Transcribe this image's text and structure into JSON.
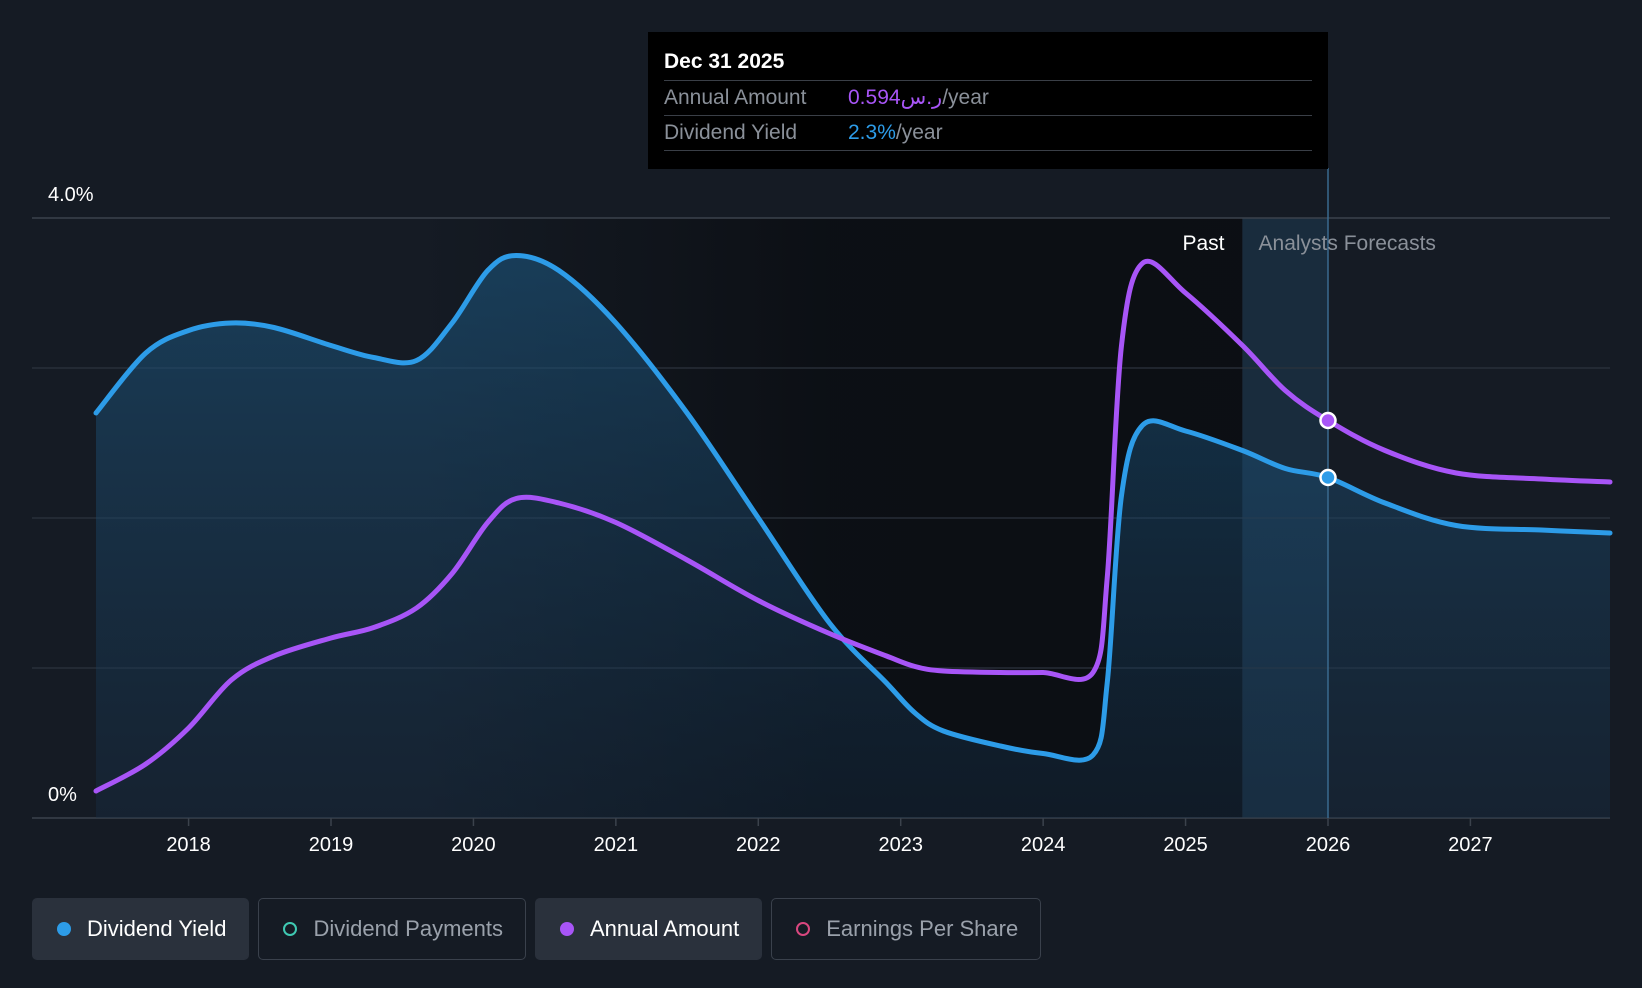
{
  "chart_data": {
    "type": "line",
    "y_axis": {
      "min": 0,
      "max": 4.0,
      "labels": [
        "4.0%",
        "0%"
      ],
      "gridlines": [
        1.0,
        2.0,
        3.0
      ]
    },
    "x_axis": {
      "min": 2017.35,
      "max": 2027.98,
      "ticks": [
        "2018",
        "2019",
        "2020",
        "2021",
        "2022",
        "2023",
        "2024",
        "2025",
        "2026",
        "2027"
      ]
    },
    "regions": {
      "past_label": "Past",
      "forecast_label": "Analysts Forecasts",
      "forecast_start": 2025.4,
      "forecast_end": 2026.0
    },
    "series": [
      {
        "name": "Dividend Yield",
        "color": "#2d9ce8",
        "area": true,
        "points": [
          [
            2017.35,
            2.7
          ],
          [
            2017.7,
            3.1
          ],
          [
            2018.0,
            3.25
          ],
          [
            2018.3,
            3.3
          ],
          [
            2018.6,
            3.27
          ],
          [
            2019.0,
            3.15
          ],
          [
            2019.3,
            3.07
          ],
          [
            2019.6,
            3.05
          ],
          [
            2019.85,
            3.3
          ],
          [
            2020.1,
            3.65
          ],
          [
            2020.3,
            3.75
          ],
          [
            2020.6,
            3.65
          ],
          [
            2021.0,
            3.3
          ],
          [
            2021.5,
            2.7
          ],
          [
            2022.0,
            2.0
          ],
          [
            2022.5,
            1.3
          ],
          [
            2022.9,
            0.9
          ],
          [
            2023.1,
            0.7
          ],
          [
            2023.3,
            0.58
          ],
          [
            2023.7,
            0.48
          ],
          [
            2024.0,
            0.43
          ],
          [
            2024.35,
            0.42
          ],
          [
            2024.45,
            0.9
          ],
          [
            2024.55,
            2.15
          ],
          [
            2024.7,
            2.62
          ],
          [
            2025.0,
            2.58
          ],
          [
            2025.4,
            2.45
          ],
          [
            2025.7,
            2.33
          ],
          [
            2026.0,
            2.27
          ],
          [
            2026.4,
            2.1
          ],
          [
            2026.9,
            1.95
          ],
          [
            2027.5,
            1.92
          ],
          [
            2027.98,
            1.9
          ]
        ]
      },
      {
        "name": "Annual Amount",
        "color": "#a855f7",
        "area": false,
        "points": [
          [
            2017.35,
            0.18
          ],
          [
            2017.7,
            0.36
          ],
          [
            2018.0,
            0.6
          ],
          [
            2018.3,
            0.92
          ],
          [
            2018.6,
            1.08
          ],
          [
            2019.0,
            1.2
          ],
          [
            2019.3,
            1.27
          ],
          [
            2019.6,
            1.4
          ],
          [
            2019.85,
            1.63
          ],
          [
            2020.1,
            1.97
          ],
          [
            2020.3,
            2.13
          ],
          [
            2020.6,
            2.1
          ],
          [
            2021.0,
            1.97
          ],
          [
            2021.5,
            1.72
          ],
          [
            2022.0,
            1.45
          ],
          [
            2022.5,
            1.23
          ],
          [
            2022.9,
            1.08
          ],
          [
            2023.1,
            1.01
          ],
          [
            2023.3,
            0.98
          ],
          [
            2023.7,
            0.97
          ],
          [
            2024.0,
            0.97
          ],
          [
            2024.35,
            0.97
          ],
          [
            2024.45,
            1.6
          ],
          [
            2024.55,
            3.15
          ],
          [
            2024.7,
            3.7
          ],
          [
            2025.0,
            3.5
          ],
          [
            2025.4,
            3.15
          ],
          [
            2025.7,
            2.85
          ],
          [
            2026.0,
            2.65
          ],
          [
            2026.4,
            2.45
          ],
          [
            2026.9,
            2.3
          ],
          [
            2027.5,
            2.26
          ],
          [
            2027.98,
            2.24
          ]
        ]
      }
    ],
    "highlight": {
      "x": 2026.0,
      "yield_y": 2.27,
      "amount_y": 2.65
    }
  },
  "tooltip": {
    "date": "Dec 31 2025",
    "rows": [
      {
        "label": "Annual Amount",
        "value": "0.594ر.س",
        "suffix": "/year"
      },
      {
        "label": "Dividend Yield",
        "value": "2.3%",
        "suffix": "/year"
      }
    ]
  },
  "legend": {
    "items": [
      {
        "label": "Dividend Yield",
        "color": "#2d9ce8",
        "active": true
      },
      {
        "label": "Dividend Payments",
        "color": "#3fc9b2",
        "active": false
      },
      {
        "label": "Annual Amount",
        "color": "#a855f7",
        "active": true
      },
      {
        "label": "Earnings Per Share",
        "color": "#d9477f",
        "active": false
      }
    ]
  }
}
